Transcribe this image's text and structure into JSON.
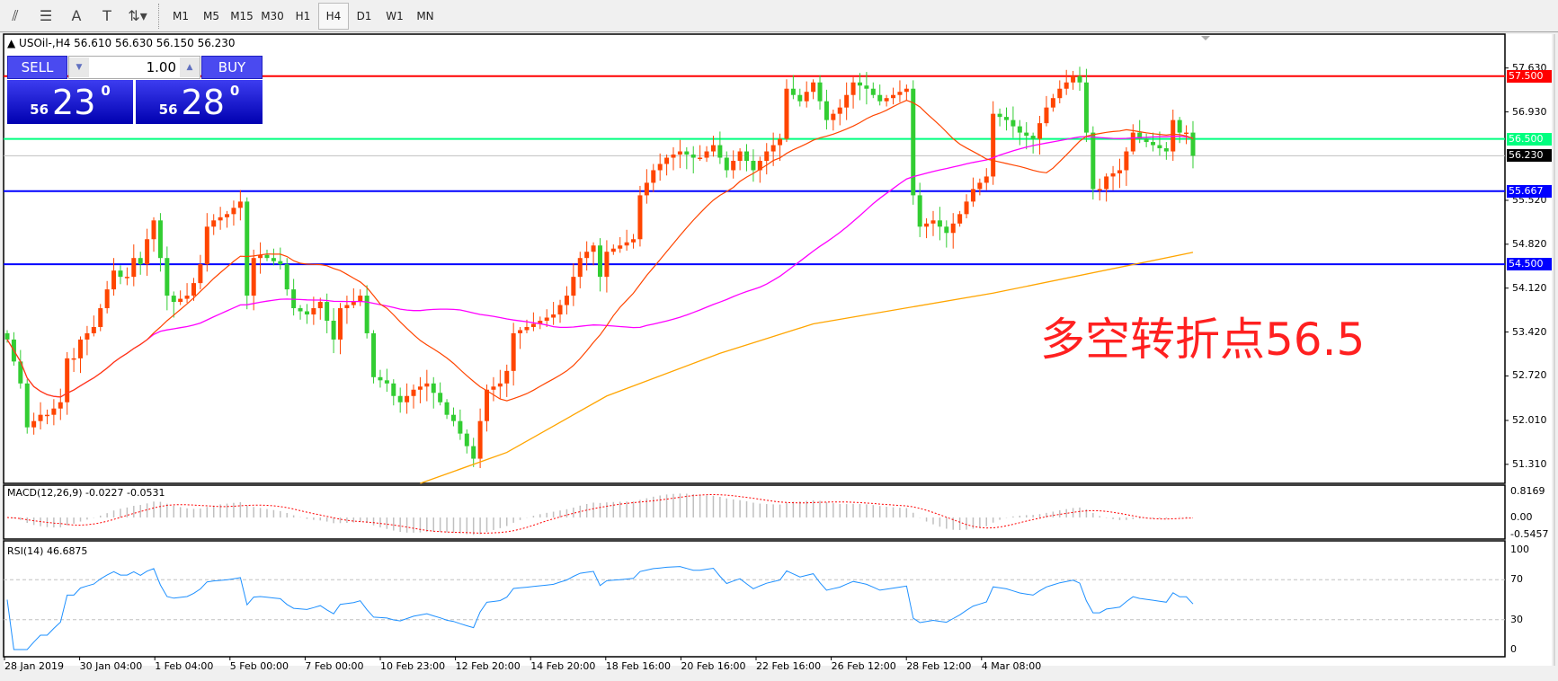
{
  "toolbar": {
    "icons": [
      "fibonacci-expansion-icon",
      "fibonacci-fan-icon",
      "text-icon",
      "text-label-icon",
      "arrows-dropdown-icon"
    ],
    "icon_glyphs": [
      "⫽",
      "☰",
      "A",
      "T",
      "⇅▾"
    ],
    "timeframes": [
      "M1",
      "M5",
      "M15",
      "M30",
      "H1",
      "H4",
      "D1",
      "W1",
      "MN"
    ],
    "active_timeframe": "H4"
  },
  "chart_header": {
    "symbol": "▲ USOil-,H4  56.610 56.630 56.150 56.230"
  },
  "trade_panel": {
    "sell_label": "SELL",
    "buy_label": "BUY",
    "lot": "1.00",
    "sell_small": "56",
    "sell_big": "23",
    "sell_sup": "0",
    "buy_small": "56",
    "buy_big": "28",
    "buy_sup": "0"
  },
  "annotation": "多空转折点56.5",
  "colors": {
    "bull": "#ff4500",
    "bear": "#32cd32",
    "ma_fast": "#ff4500",
    "ma_mid": "#ff00ff",
    "ma_long": "#ffa500",
    "resistance": "#ff0000",
    "pivot": "#00ff7f",
    "support": "#0000ff",
    "rsi": "#1e90ff",
    "macd_signal": "#ff0000",
    "macd_hist": "#c0c0c0"
  },
  "chart_data": {
    "type": "candlestick",
    "ylim": [
      51.01,
      58.13
    ],
    "y_ticks": [
      "57.630",
      "56.930",
      "55.520",
      "54.820",
      "54.120",
      "53.420",
      "52.720",
      "52.010",
      "51.310"
    ],
    "x_labels": [
      "28 Jan 2019",
      "30 Jan 04:00",
      "1 Feb 04:00",
      "5 Feb 00:00",
      "7 Feb 00:00",
      "10 Feb 23:00",
      "12 Feb 20:00",
      "14 Feb 20:00",
      "18 Feb 16:00",
      "20 Feb 16:00",
      "22 Feb 16:00",
      "26 Feb 12:00",
      "28 Feb 12:00",
      "4 Mar 08:00"
    ],
    "closes": [
      53.3,
      52.95,
      52.6,
      51.9,
      52.0,
      52.1,
      52.1,
      52.2,
      52.3,
      53.0,
      53.0,
      53.3,
      53.4,
      53.5,
      53.8,
      54.1,
      54.4,
      54.3,
      54.3,
      54.6,
      54.5,
      54.9,
      55.2,
      54.6,
      54.0,
      53.9,
      53.95,
      54.0,
      54.2,
      54.5,
      55.1,
      55.2,
      55.25,
      55.3,
      55.4,
      55.5,
      54.0,
      54.6,
      54.65,
      54.6,
      54.55,
      54.5,
      54.1,
      53.8,
      53.75,
      53.7,
      53.8,
      53.9,
      53.6,
      53.3,
      53.8,
      53.85,
      53.9,
      54.0,
      53.4,
      52.7,
      52.65,
      52.6,
      52.4,
      52.3,
      52.4,
      52.5,
      52.55,
      52.6,
      52.45,
      52.3,
      52.1,
      52.0,
      51.8,
      51.6,
      51.4,
      52.0,
      52.5,
      52.55,
      52.6,
      52.8,
      53.4,
      53.45,
      53.5,
      53.55,
      53.6,
      53.65,
      53.7,
      53.85,
      54.0,
      54.3,
      54.6,
      54.7,
      54.8,
      54.3,
      54.7,
      54.75,
      54.8,
      54.85,
      54.9,
      55.6,
      55.8,
      56.0,
      56.1,
      56.2,
      56.25,
      56.3,
      56.25,
      56.2,
      56.2,
      56.3,
      56.4,
      56.2,
      56.0,
      56.15,
      56.3,
      56.15,
      56.0,
      56.15,
      56.3,
      56.4,
      56.5,
      57.3,
      57.2,
      57.1,
      57.25,
      57.4,
      57.1,
      56.8,
      56.9,
      57.0,
      57.2,
      57.4,
      57.35,
      57.3,
      57.2,
      57.1,
      57.15,
      57.2,
      57.25,
      57.3,
      55.6,
      55.1,
      55.15,
      55.2,
      55.1,
      55.0,
      55.15,
      55.3,
      55.5,
      55.7,
      55.8,
      55.9,
      56.9,
      56.85,
      56.8,
      56.7,
      56.6,
      56.55,
      56.5,
      56.75,
      57.0,
      57.15,
      57.3,
      57.4,
      57.5,
      57.4,
      56.6,
      55.7,
      55.7,
      55.9,
      55.95,
      56.0,
      56.3,
      56.6,
      56.5,
      56.45,
      56.4,
      56.35,
      56.3,
      56.8,
      56.6,
      56.6,
      56.23
    ],
    "ma_long_points": [
      [
        62,
        51.0
      ],
      [
        75,
        51.5
      ],
      [
        90,
        52.4
      ],
      [
        107,
        53.08
      ],
      [
        121,
        53.55
      ],
      [
        148,
        54.04
      ],
      [
        178,
        54.69
      ]
    ],
    "hlines": [
      {
        "price": 57.5,
        "label": "57.500",
        "color": "#ff0000"
      },
      {
        "price": 56.5,
        "label": "56.500",
        "color": "#00ff7f"
      },
      {
        "price": 56.23,
        "label": "56.230",
        "color": "#000000",
        "line": "#c0c0c0"
      },
      {
        "price": 55.667,
        "label": "55.667",
        "color": "#0000ff"
      },
      {
        "price": 54.5,
        "label": "54.500",
        "color": "#0000ff"
      }
    ],
    "macd": {
      "label": "MACD(12,26,9) -0.0227 -0.0531",
      "ticks": [
        "0.8169",
        "0.00",
        "-0.5457"
      ],
      "range": [
        -0.5457,
        0.8169
      ]
    },
    "rsi": {
      "label": "RSI(14) 46.6875",
      "ticks": [
        "100",
        "70",
        "30",
        "0"
      ],
      "levels": [
        70,
        30
      ]
    }
  }
}
